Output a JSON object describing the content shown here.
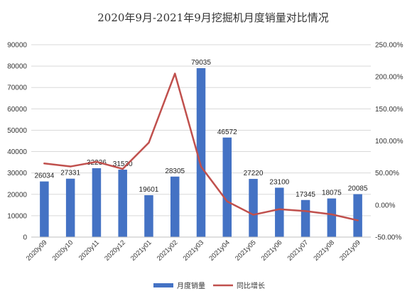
{
  "chart_data": {
    "type": "bar",
    "title": "2020年9月-2021年9月挖掘机月度销量对比情况",
    "categories": [
      "2020y09",
      "2020y10",
      "2020y11",
      "2020y12",
      "2021y01",
      "2021y02",
      "2021y03",
      "2021y04",
      "2021y05",
      "2021y06",
      "2021y07",
      "2021y08",
      "2021y09"
    ],
    "series": [
      {
        "name": "月度销量",
        "kind": "bar",
        "axis": "left",
        "color": "#4472C4",
        "values": [
          26034,
          27331,
          32236,
          31530,
          19601,
          28305,
          79035,
          46572,
          27220,
          23100,
          17345,
          18075,
          20085
        ],
        "labels": [
          "26034",
          "27331",
          "32236",
          "31530",
          "19601",
          "28305",
          "79035",
          "46572",
          "27220",
          "23100",
          "17345",
          "18075",
          "20085"
        ]
      },
      {
        "name": "同比增长",
        "kind": "line",
        "axis": "right",
        "color": "#C0504D",
        "values": [
          64.8,
          60.1,
          67.4,
          56.3,
          97.2,
          205.0,
          59.9,
          5.6,
          -15.2,
          -6.5,
          -9.4,
          -14.6,
          -23.9
        ]
      }
    ],
    "y_left": {
      "min": 0,
      "max": 90000,
      "step": 10000,
      "ticks": [
        "0",
        "10000",
        "20000",
        "30000",
        "40000",
        "50000",
        "60000",
        "70000",
        "80000",
        "90000"
      ]
    },
    "y_right": {
      "min": -50,
      "max": 250,
      "step": 50,
      "ticks": [
        "-50.00%",
        "0.00%",
        "50.00%",
        "100.00%",
        "150.00%",
        "200.00%",
        "250.00%"
      ]
    },
    "xlabel": "",
    "ylabel": "",
    "grid": true,
    "legend_position": "bottom"
  }
}
